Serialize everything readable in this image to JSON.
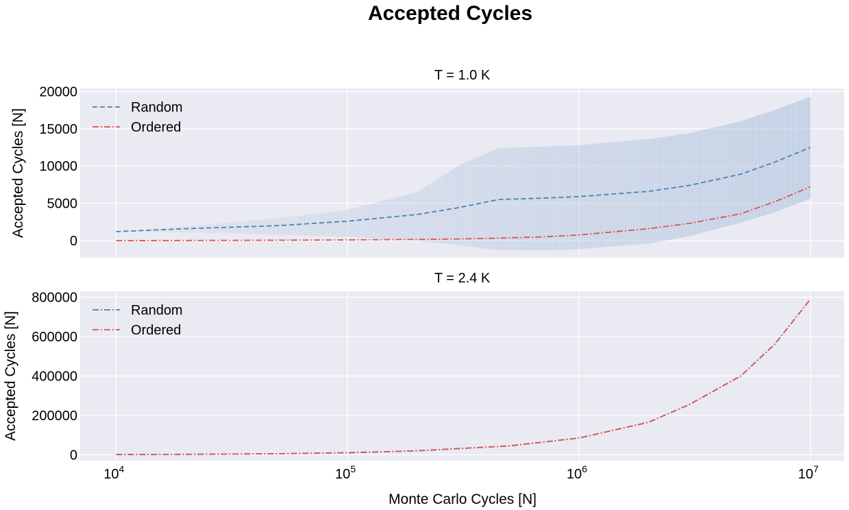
{
  "figure": {
    "title": "Accepted Cycles",
    "xlabel": "Monte Carlo Cycles [N]"
  },
  "colors": {
    "random": "#4682b4",
    "ordered": "#e0524f",
    "band": "#b0c4de",
    "background": "#eaeaf2",
    "grid": "#ffffff"
  },
  "chart_data": [
    {
      "type": "line",
      "title": "T = 1.0 K",
      "xlabel": "",
      "ylabel": "Accepted Cycles [N]",
      "xscale": "log",
      "xlim": [
        7000,
        14000000
      ],
      "ylim": [
        -2300,
        20400
      ],
      "x_ticks": [
        10000,
        100000,
        1000000,
        10000000
      ],
      "y_ticks": [
        0,
        5000,
        10000,
        15000,
        20000
      ],
      "y_tick_labels": [
        "0",
        "5000",
        "10000",
        "15000",
        "20000"
      ],
      "legend": "top-left",
      "grid": true,
      "x": [
        10000,
        20000,
        50000,
        100000,
        200000,
        300000,
        450000,
        700000,
        1000000,
        2000000,
        3000000,
        5000000,
        7000000,
        10000000
      ],
      "series": [
        {
          "name": "Random",
          "style": "dashed",
          "values": [
            1200,
            1600,
            2000,
            2600,
            3500,
            4400,
            5500,
            5700,
            5900,
            6600,
            7400,
            8900,
            10500,
            12500
          ],
          "band_lower": [
            1200,
            1100,
            800,
            500,
            0,
            -600,
            -1300,
            -1300,
            -1150,
            -400,
            600,
            2400,
            3800,
            5600
          ],
          "band_upper": [
            1200,
            1900,
            3000,
            4100,
            6500,
            10000,
            12400,
            12600,
            12800,
            13600,
            14400,
            16000,
            17500,
            19300
          ]
        },
        {
          "name": "Ordered",
          "style": "dashdot",
          "values": [
            0,
            20,
            50,
            90,
            150,
            220,
            330,
            500,
            750,
            1600,
            2300,
            3600,
            5200,
            7200
          ]
        }
      ]
    },
    {
      "type": "line",
      "title": "T = 2.4 K",
      "xlabel": "Monte Carlo Cycles [N]",
      "ylabel": "Accepted Cycles [N]",
      "xscale": "log",
      "xlim": [
        7000,
        14000000
      ],
      "ylim": [
        -30000,
        830000
      ],
      "x_ticks": [
        10000,
        100000,
        1000000,
        10000000
      ],
      "x_tick_labels": [
        "10",
        "10",
        "10",
        "10"
      ],
      "x_tick_exponents": [
        "4",
        "5",
        "6",
        "7"
      ],
      "y_ticks": [
        0,
        200000,
        400000,
        600000,
        800000
      ],
      "y_tick_labels": [
        "0",
        "200000",
        "400000",
        "600000",
        "800000"
      ],
      "legend": "top-left",
      "grid": true,
      "x": [
        10000,
        20000,
        50000,
        100000,
        200000,
        500000,
        1000000,
        2000000,
        3000000,
        5000000,
        7000000,
        10000000
      ],
      "series": [
        {
          "name": "Random",
          "style": "dashdot",
          "values": [
            1000,
            2000,
            5000,
            10000,
            20000,
            45000,
            85000,
            165000,
            255000,
            400000,
            560000,
            790000
          ]
        },
        {
          "name": "Ordered",
          "style": "dashdot",
          "values": [
            1000,
            2000,
            5000,
            10000,
            20000,
            45000,
            85000,
            165000,
            255000,
            400000,
            560000,
            790000
          ]
        }
      ]
    }
  ]
}
